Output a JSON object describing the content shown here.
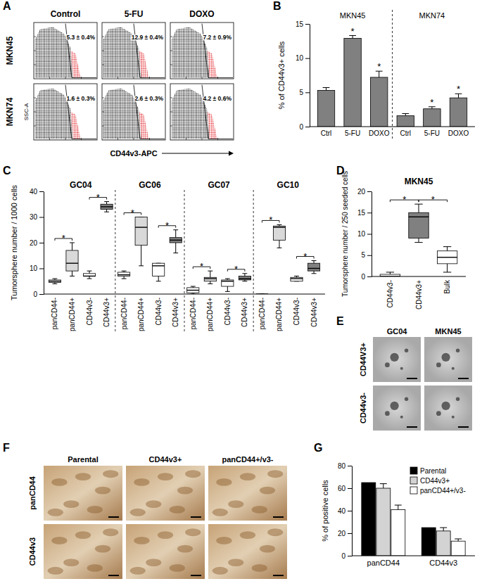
{
  "chart_data": [
    {
      "type": "flow_cytometry",
      "panel": "A",
      "rows": [
        "MKN45",
        "MKN74"
      ],
      "columns": [
        "Control",
        "5-FU",
        "DOXO"
      ],
      "gates": [
        [
          "5.3 ± 0.4%",
          "12.9 ± 0.4%",
          "7.2 ± 0.9%"
        ],
        [
          "1.6 ± 0.3%",
          "2.6 ± 0.3%",
          "4.2 ± 0.6%"
        ]
      ],
      "x_label": "CD44v3-APC",
      "y_label": "SSC-A"
    },
    {
      "type": "bar",
      "panel": "B",
      "color": "#808080",
      "y_label": "% of CD44v3+ cells",
      "ylim": [
        0,
        15
      ],
      "yticks": [
        0,
        5,
        10,
        15
      ],
      "groups": [
        {
          "name": "MKN45",
          "categories": [
            "Ctrl",
            "5-FU",
            "DOXO"
          ],
          "values": [
            5.3,
            12.9,
            7.2
          ],
          "errors": [
            0.4,
            0.4,
            0.9
          ],
          "significance": [
            null,
            "*",
            "*"
          ]
        },
        {
          "name": "MKN74",
          "categories": [
            "Ctrl",
            "5-FU",
            "DOXO"
          ],
          "values": [
            1.6,
            2.6,
            4.2
          ],
          "errors": [
            0.3,
            0.3,
            0.6
          ],
          "significance": [
            null,
            "*",
            "*"
          ]
        }
      ]
    },
    {
      "type": "box",
      "panel": "C",
      "y_label": "Tumorsphere number / 1000 cells",
      "ylim": [
        0,
        40
      ],
      "yticks": [
        0,
        10,
        20,
        30,
        40
      ],
      "categories": [
        "panCD44-",
        "panCD44+",
        "CD44v3-",
        "CD44v3+"
      ],
      "colors": [
        "#ffffff",
        "#d9d9d9",
        "#ffffff",
        "#808080"
      ],
      "groups": [
        {
          "name": "GC04",
          "boxes": [
            {
              "min": 4,
              "q1": 4.5,
              "median": 5,
              "q3": 5.5,
              "max": 6
            },
            {
              "min": 7,
              "q1": 9,
              "median": 12,
              "q3": 17,
              "max": 20
            },
            {
              "min": 6,
              "q1": 7,
              "median": 7,
              "q3": 8,
              "max": 9
            },
            {
              "min": 32,
              "q1": 33,
              "median": 34,
              "q3": 35,
              "max": 36
            }
          ],
          "significance": [
            {
              "pair": [
                0,
                1
              ],
              "label": "*"
            },
            {
              "pair": [
                2,
                3
              ],
              "label": "*"
            }
          ]
        },
        {
          "name": "GC06",
          "boxes": [
            {
              "min": 6,
              "q1": 7,
              "median": 7.5,
              "q3": 8.5,
              "max": 9
            },
            {
              "min": 11,
              "q1": 19,
              "median": 26,
              "q3": 30,
              "max": 30
            },
            {
              "min": 5,
              "q1": 7,
              "median": 11,
              "q3": 12,
              "max": 12
            },
            {
              "min": 16,
              "q1": 20,
              "median": 21,
              "q3": 22,
              "max": 25
            }
          ],
          "significance": [
            {
              "pair": [
                0,
                1
              ],
              "label": "*"
            },
            {
              "pair": [
                2,
                3
              ],
              "label": "*"
            }
          ]
        },
        {
          "name": "GC07",
          "boxes": [
            {
              "min": 0,
              "q1": 0.5,
              "median": 1.5,
              "q3": 2.5,
              "max": 3
            },
            {
              "min": 4,
              "q1": 5,
              "median": 6,
              "q3": 6.5,
              "max": 9
            },
            {
              "min": 1,
              "q1": 3,
              "median": 5,
              "q3": 5.5,
              "max": 6
            },
            {
              "min": 5,
              "q1": 5.5,
              "median": 6,
              "q3": 7,
              "max": 8
            }
          ],
          "significance": [
            {
              "pair": [
                0,
                1
              ],
              "label": "*"
            },
            {
              "pair": [
                2,
                3
              ],
              "label": "*"
            }
          ]
        },
        {
          "name": "GC10",
          "boxes": [
            {
              "min": 0,
              "q1": 0,
              "median": 0,
              "q3": 0,
              "max": 0
            },
            {
              "min": 18,
              "q1": 21,
              "median": 26,
              "q3": 26.5,
              "max": 27
            },
            {
              "min": 5,
              "q1": 5,
              "median": 6,
              "q3": 6.5,
              "max": 7
            },
            {
              "min": 8,
              "q1": 9,
              "median": 10,
              "q3": 12,
              "max": 13
            }
          ],
          "significance": [
            {
              "pair": [
                0,
                1
              ],
              "label": "*"
            },
            {
              "pair": [
                2,
                3
              ],
              "label": "*"
            }
          ]
        }
      ]
    },
    {
      "type": "box",
      "panel": "D",
      "title": "MKN45",
      "y_label": "Tumorsphere number / 250 seeded cells",
      "ylim": [
        0,
        20
      ],
      "yticks": [
        0,
        5,
        10,
        15,
        20
      ],
      "categories": [
        "CD44v3-",
        "CD44v3+",
        "Bulk"
      ],
      "colors": [
        "#ffffff",
        "#808080",
        "#ffffff"
      ],
      "groups": [
        {
          "boxes": [
            {
              "min": 0,
              "q1": 0,
              "median": 0,
              "q3": 0.5,
              "max": 1
            },
            {
              "min": 8,
              "q1": 9,
              "median": 14,
              "q3": 15,
              "max": 17
            },
            {
              "min": 1,
              "q1": 3,
              "median": 4.5,
              "q3": 6,
              "max": 7
            }
          ],
          "significance": [
            {
              "pair": [
                0,
                1
              ],
              "label": "*"
            },
            {
              "pair": [
                1,
                2
              ],
              "label": "*"
            }
          ]
        }
      ]
    },
    {
      "type": "image_grid",
      "panel": "E",
      "columns": [
        "GC04",
        "MKN45"
      ],
      "rows": [
        "CD44V3+",
        "CD44v3-"
      ]
    },
    {
      "type": "image_grid",
      "panel": "F",
      "columns": [
        "Parental",
        "CD44v3+",
        "panCD44+/v3-"
      ],
      "rows": [
        "panCD44",
        "CD44v3"
      ]
    },
    {
      "type": "bar",
      "panel": "G",
      "legend": "top-right",
      "y_label": "% of positive cells",
      "ylim": [
        0,
        80
      ],
      "yticks": [
        0,
        20,
        40,
        60,
        80
      ],
      "categories": [
        "panCD44",
        "CD44v3"
      ],
      "series": [
        {
          "name": "Parental",
          "color": "#000000",
          "values": [
            65,
            25
          ],
          "errors": [
            null,
            null
          ]
        },
        {
          "name": "CD44v3+",
          "color": "#d3d3d3",
          "values": [
            60,
            22
          ],
          "errors": [
            4,
            3
          ]
        },
        {
          "name": "panCD44+/v3-",
          "color": "#ffffff",
          "values": [
            41,
            13
          ],
          "errors": [
            4,
            2
          ]
        }
      ]
    }
  ]
}
